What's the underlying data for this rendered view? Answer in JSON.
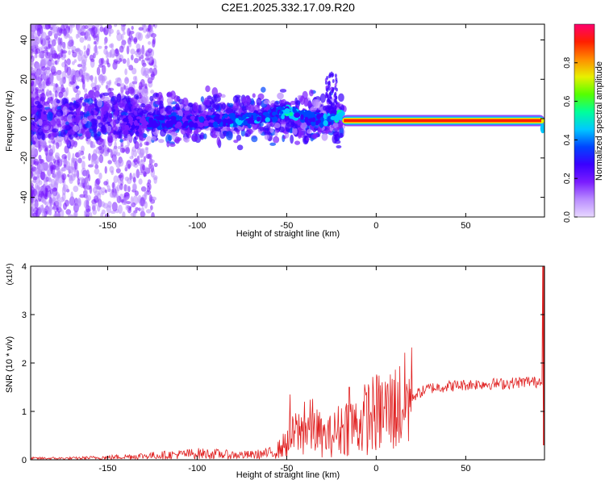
{
  "figure": {
    "title": "C2E1.2025.332.17.09.R20"
  },
  "chart_data": [
    {
      "type": "heatmap",
      "title": "C2E1.2025.332.17.09.R20",
      "xlabel": "Height of straight line (km)",
      "ylabel": "Frequency (Hz)",
      "xlim": [
        -193,
        94
      ],
      "ylim": [
        -50,
        48
      ],
      "x_ticks": [
        -150,
        -100,
        -50,
        0,
        50
      ],
      "y_ticks": [
        -40,
        -20,
        0,
        20,
        40
      ],
      "colorbar": {
        "label": "Normalized spectral amplitude",
        "range": [
          0,
          1
        ],
        "ticks": [
          0.0,
          0.2,
          0.4,
          0.6,
          0.8
        ],
        "tick_labels": [
          "0.0",
          "0.2",
          "0.4",
          "0.6",
          "0.8"
        ],
        "colormap": [
          "#e8d8ff",
          "#b98cff",
          "#7a1cff",
          "#3a00ff",
          "#0044ff",
          "#00c8ff",
          "#00ff9a",
          "#55ff00",
          "#e8f000",
          "#ff8c00",
          "#ff1f00",
          "#ff006e"
        ]
      },
      "ridge": {
        "description_x": [
          -140,
          -120,
          -100,
          -80,
          -60,
          -50,
          -40,
          -30,
          -20,
          -10,
          0,
          20,
          40,
          60,
          80,
          94
        ],
        "frequency": [
          -2,
          -2,
          -1,
          -1,
          1,
          4,
          1,
          -1,
          2,
          -1,
          -1,
          -1,
          -1,
          -1,
          -1,
          -6
        ],
        "amplitude": [
          0.25,
          0.35,
          0.3,
          0.35,
          0.4,
          0.45,
          0.4,
          0.4,
          0.45,
          0.85,
          0.9,
          0.95,
          0.95,
          0.95,
          0.95,
          0.3
        ]
      },
      "ridge_segments": [
        {
          "x0": -19,
          "x1": 94,
          "y": -1,
          "amplitude": 0.95
        },
        {
          "x0": -45,
          "x1": -20,
          "y_start": 2,
          "y_end": 6,
          "amplitude": 0.4
        }
      ]
    },
    {
      "type": "line",
      "xlabel": "Height of straight line (km)",
      "ylabel": "SNR (10 * v/v)",
      "y_multiplier": "(x10⁴)",
      "xlim": [
        -193,
        94
      ],
      "ylim": [
        0,
        4
      ],
      "x_ticks": [
        -150,
        -100,
        -50,
        0,
        50
      ],
      "y_ticks": [
        0,
        1,
        2,
        3,
        4
      ],
      "color": "#e02020",
      "x": [
        -193,
        -170,
        -150,
        -130,
        -110,
        -100,
        -90,
        -80,
        -70,
        -60,
        -55,
        -50,
        -45,
        -40,
        -35,
        -30,
        -25,
        -20,
        -15,
        -10,
        -5,
        0,
        5,
        10,
        15,
        20,
        25,
        30,
        40,
        50,
        60,
        70,
        80,
        85,
        90,
        93,
        94
      ],
      "y": [
        0.03,
        0.03,
        0.05,
        0.08,
        0.11,
        0.13,
        0.12,
        0.1,
        0.1,
        0.13,
        0.2,
        0.35,
        0.55,
        0.6,
        0.7,
        0.45,
        0.5,
        0.65,
        0.75,
        0.7,
        0.9,
        0.95,
        1.0,
        1.05,
        1.15,
        1.3,
        1.4,
        1.48,
        1.52,
        1.55,
        1.57,
        1.57,
        1.6,
        1.62,
        1.6,
        1.7,
        0.3
      ],
      "peaks": [
        {
          "x": -48,
          "y": 1.35
        },
        {
          "x": -40,
          "y": 1.2
        },
        {
          "x": -15,
          "y": 1.5
        },
        {
          "x": 10,
          "y": 1.65
        },
        {
          "x": 93,
          "y": 4.0
        }
      ]
    }
  ]
}
